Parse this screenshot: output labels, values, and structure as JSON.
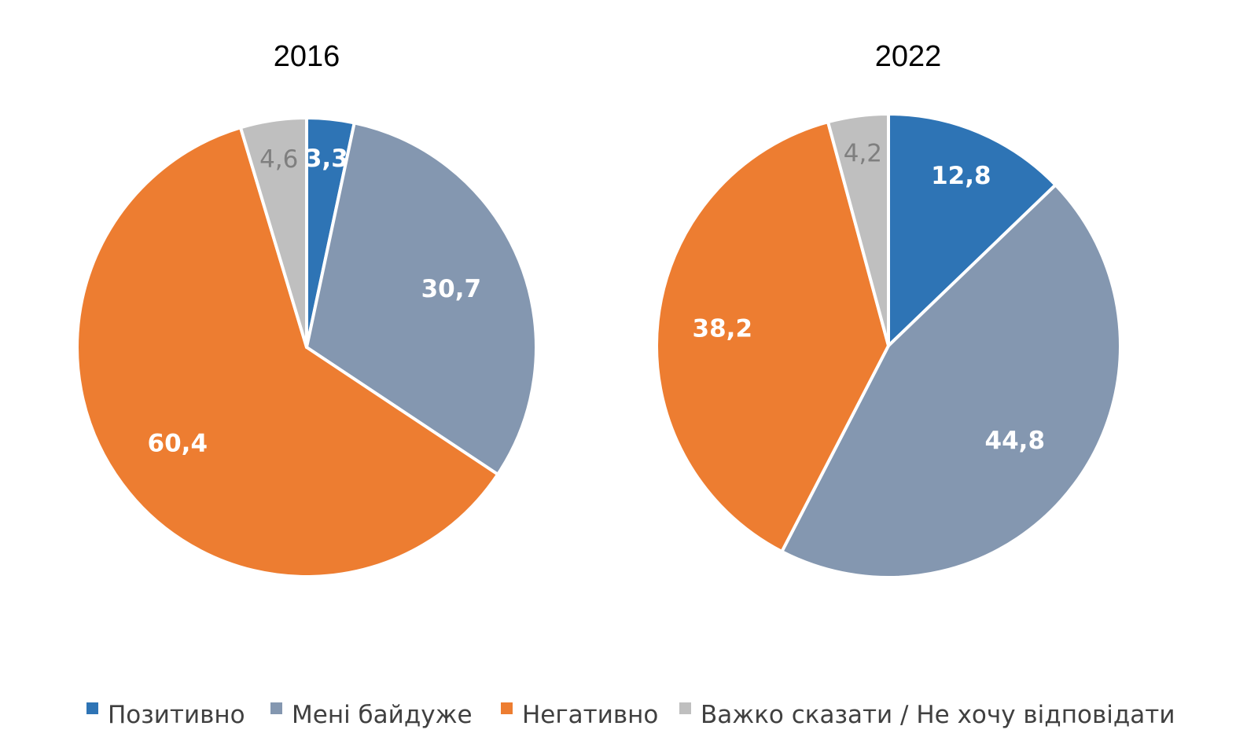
{
  "chart_data": [
    {
      "type": "pie",
      "title": "2016",
      "start_angle_deg": 0,
      "direction": "clockwise",
      "slices": [
        {
          "label": "Позитивно",
          "value": 3.3,
          "display": "3,3",
          "color": "#2E74B5",
          "label_color": "#FFFFFF"
        },
        {
          "label": "Мені байдуже",
          "value": 30.7,
          "display": "30,7",
          "color": "#8497B0",
          "label_color": "#FFFFFF"
        },
        {
          "label": "Негативно",
          "value": 60.4,
          "display": "60,4",
          "color": "#ED7D31",
          "label_color": "#FFFFFF"
        },
        {
          "label": "Важко сказати / Не хочу відповідати",
          "value": 4.6,
          "display": "4,6",
          "color": "#BFBFBF",
          "label_color": "#7F7F7F"
        }
      ]
    },
    {
      "type": "pie",
      "title": "2022",
      "start_angle_deg": 0,
      "direction": "clockwise",
      "slices": [
        {
          "label": "Позитивно",
          "value": 12.8,
          "display": "12,8",
          "color": "#2E74B5",
          "label_color": "#FFFFFF"
        },
        {
          "label": "Мені байдуже",
          "value": 44.8,
          "display": "44,8",
          "color": "#8497B0",
          "label_color": "#FFFFFF"
        },
        {
          "label": "Негативно",
          "value": 38.2,
          "display": "38,2",
          "color": "#ED7D31",
          "label_color": "#FFFFFF"
        },
        {
          "label": "Важко сказати / Не хочу відповідати",
          "value": 4.2,
          "display": "4,2",
          "color": "#BFBFBF",
          "label_color": "#7F7F7F"
        }
      ]
    }
  ],
  "legend": {
    "position": "bottom",
    "items": [
      {
        "label": "Позитивно",
        "color": "#2E74B5"
      },
      {
        "label": "Мені байдуже",
        "color": "#8497B0"
      },
      {
        "label": "Негативно",
        "color": "#ED7D31"
      },
      {
        "label": "Важко сказати / Не хочу відповідати",
        "color": "#BFBFBF"
      }
    ]
  }
}
